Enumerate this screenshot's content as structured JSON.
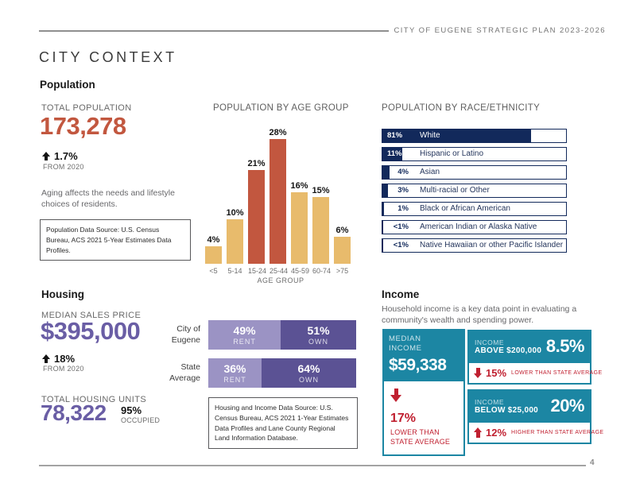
{
  "page": {
    "header": "CITY OF EUGENE STRATEGIC PLAN 2023-2026",
    "title": "CITY CONTEXT",
    "page_number": "4"
  },
  "colors": {
    "accent_orange": "#C2573F",
    "bar_tan": "#E8BB6C",
    "navy": "#12295B",
    "purple_dark": "#5B5294",
    "purple_light": "#9B93C4",
    "purple_text": "#6A5EA5",
    "teal": "#1C86A3",
    "red": "#C02030"
  },
  "population": {
    "section_title": "Population",
    "total": {
      "label": "TOTAL POPULATION",
      "value": "173,278",
      "change": "1.7%",
      "change_period": "FROM 2020"
    },
    "note": "Aging affects the needs and lifestyle choices of residents.",
    "source": "Population Data Source: U.S. Census Bureau, ACS 2021 5-Year Estimates Data Profiles."
  },
  "housing": {
    "section_title": "Housing",
    "median_price": {
      "label": "MEDIAN SALES PRICE",
      "value": "$395,000",
      "change": "18%",
      "change_period": "FROM 2020"
    },
    "units": {
      "label": "TOTAL HOUSING UNITS",
      "value": "78,322",
      "occupied_value": "95%",
      "occupied_label": "OCCUPIED"
    },
    "rent_label": "RENT",
    "own_label": "OWN",
    "tenure_rows": [
      {
        "label_lines": [
          "City of",
          "Eugene"
        ],
        "rent": 49,
        "own": 51
      },
      {
        "label_lines": [
          "State",
          "Average"
        ],
        "rent": 36,
        "own": 64
      }
    ],
    "source": "Housing and Income Data Source: U.S. Census Bureau, ACS 2021 1-Year Estimates Data Profiles and Lane County Regional Land Information Database."
  },
  "income": {
    "section_title": "Income",
    "intro": "Household income is a key data point in evaluating a community's wealth and spending power.",
    "median_card": {
      "label_line1": "MEDIAN",
      "label_line2": "INCOME",
      "value": "$59,338",
      "delta": "17%",
      "delta_note_line1": "LOWER THAN",
      "delta_note_line2": "STATE AVERAGE",
      "direction": "down"
    },
    "cards": [
      {
        "label_line1": "INCOME",
        "label_line2": "ABOVE $200,000",
        "value": "8.5%",
        "delta": "15%",
        "delta_note": "LOWER THAN STATE AVERAGE",
        "direction": "down"
      },
      {
        "label_line1": "INCOME",
        "label_line2": "BELOW $25,000",
        "value": "20%",
        "delta": "12%",
        "delta_note": "HIGHER THAN STATE AVERAGE",
        "direction": "up"
      }
    ]
  },
  "chart_data": [
    {
      "type": "bar",
      "title": "POPULATION BY AGE GROUP",
      "categories": [
        "<5",
        "5-14",
        "15-24",
        "25-44",
        "45-59",
        "60-74",
        ">75"
      ],
      "values": [
        4,
        10,
        21,
        28,
        16,
        15,
        6
      ],
      "unit": "%",
      "xlabel": "AGE GROUP",
      "ylabel": "",
      "ylim": [
        0,
        30
      ],
      "grid": false,
      "highlight_categories": [
        "15-24",
        "25-44"
      ],
      "bar_colors": {
        "default": "#E8BB6C",
        "highlight": "#C2573F"
      }
    },
    {
      "type": "bar",
      "orientation": "horizontal",
      "title": "POPULATION BY RACE/ETHNICITY",
      "categories": [
        "White",
        "Hispanic or Latino",
        "Asian",
        "Multi-racial or Other",
        "Black or African American",
        "American Indian or Alaska Native",
        "Native Hawaiian or other Pacific Islander"
      ],
      "values": [
        81,
        11,
        4,
        3,
        1,
        0.5,
        0.5
      ],
      "value_labels": [
        "81%",
        "11%",
        "4%",
        "3%",
        "1%",
        "<1%",
        "<1%"
      ],
      "xlim": [
        0,
        100
      ],
      "bar_color": "#12295B"
    },
    {
      "type": "bar",
      "subtype": "stacked-horizontal",
      "title": "Housing tenure: rent vs own",
      "categories": [
        "City of Eugene",
        "State Average"
      ],
      "series": [
        {
          "name": "RENT",
          "values": [
            49,
            36
          ],
          "color": "#9B93C4"
        },
        {
          "name": "OWN",
          "values": [
            51,
            64
          ],
          "color": "#5B5294"
        }
      ]
    }
  ]
}
